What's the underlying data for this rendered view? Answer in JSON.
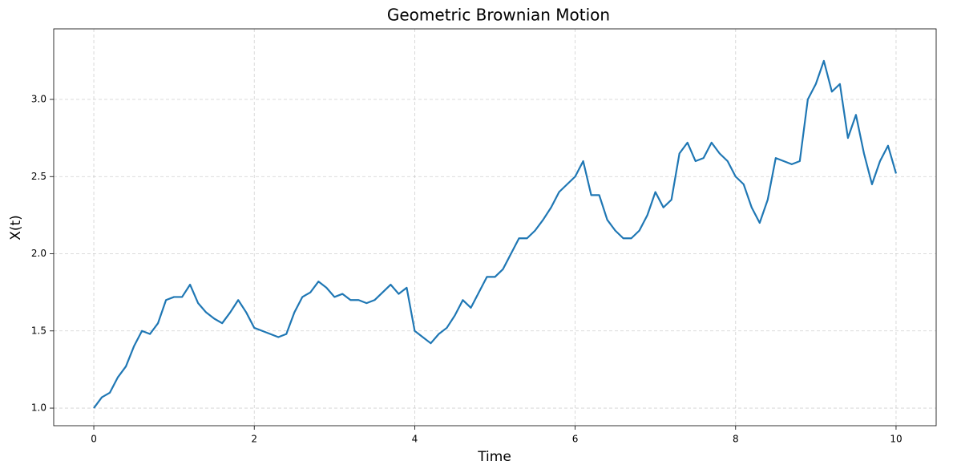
{
  "chart_data": {
    "type": "line",
    "title": "Geometric Brownian Motion",
    "x_label": "Time",
    "y_label": "X(t)",
    "x": [
      0,
      0.1,
      0.2,
      0.3,
      0.4,
      0.5,
      0.6,
      0.7,
      0.8,
      0.9,
      1,
      1.1,
      1.2,
      1.3,
      1.4,
      1.5,
      1.6,
      1.7,
      1.8,
      1.9,
      2,
      2.1,
      2.2,
      2.3,
      2.4,
      2.5,
      2.6,
      2.7,
      2.8,
      2.9,
      3,
      3.1,
      3.2,
      3.3,
      3.4,
      3.5,
      3.6,
      3.7,
      3.8,
      3.9,
      4,
      4.1,
      4.2,
      4.3,
      4.4,
      4.5,
      4.6,
      4.7,
      4.8,
      4.9,
      5,
      5.1,
      5.2,
      5.3,
      5.4,
      5.5,
      5.6,
      5.7,
      5.8,
      5.9,
      6,
      6.1,
      6.2,
      6.3,
      6.4,
      6.5,
      6.6,
      6.7,
      6.8,
      6.9,
      7,
      7.1,
      7.2,
      7.3,
      7.4,
      7.5,
      7.6,
      7.7,
      7.8,
      7.9,
      8,
      8.1,
      8.2,
      8.3,
      8.4,
      8.5,
      8.6,
      8.7,
      8.8,
      8.9,
      9,
      9.1,
      9.2,
      9.3,
      9.4,
      9.5,
      9.6,
      9.7,
      9.8,
      9.9,
      10
    ],
    "series": [
      {
        "color": "#1f77b4",
        "values": [
          1.0,
          1.07,
          1.1,
          1.2,
          1.27,
          1.4,
          1.5,
          1.48,
          1.55,
          1.7,
          1.72,
          1.72,
          1.8,
          1.68,
          1.62,
          1.58,
          1.55,
          1.62,
          1.7,
          1.62,
          1.52,
          1.5,
          1.48,
          1.46,
          1.48,
          1.62,
          1.72,
          1.75,
          1.82,
          1.78,
          1.72,
          1.74,
          1.7,
          1.7,
          1.68,
          1.7,
          1.75,
          1.8,
          1.74,
          1.78,
          1.5,
          1.46,
          1.42,
          1.48,
          1.52,
          1.6,
          1.7,
          1.65,
          1.75,
          1.85,
          1.85,
          1.9,
          2.0,
          2.1,
          2.1,
          2.15,
          2.22,
          2.3,
          2.4,
          2.45,
          2.5,
          2.6,
          2.38,
          2.38,
          2.22,
          2.15,
          2.1,
          2.1,
          2.15,
          2.25,
          2.4,
          2.3,
          2.35,
          2.65,
          2.72,
          2.6,
          2.62,
          2.72,
          2.65,
          2.6,
          2.5,
          2.45,
          2.3,
          2.2,
          2.35,
          2.62,
          2.6,
          2.58,
          2.6,
          3.0,
          3.1,
          3.25,
          3.05,
          3.1,
          2.75,
          2.9,
          2.65,
          2.45,
          2.6,
          2.7,
          2.52
        ]
      }
    ],
    "xlim": [
      -0.5,
      10.5
    ],
    "ylim": [
      0.886,
      3.457
    ],
    "xticks": [
      0,
      2,
      4,
      6,
      8,
      10
    ],
    "yticks": [
      {
        "value": 1,
        "label": "1.0"
      },
      1.5,
      {
        "value": 2,
        "label": "2.0"
      },
      2.5,
      {
        "value": 3,
        "label": "3.0"
      }
    ],
    "grid": true
  }
}
